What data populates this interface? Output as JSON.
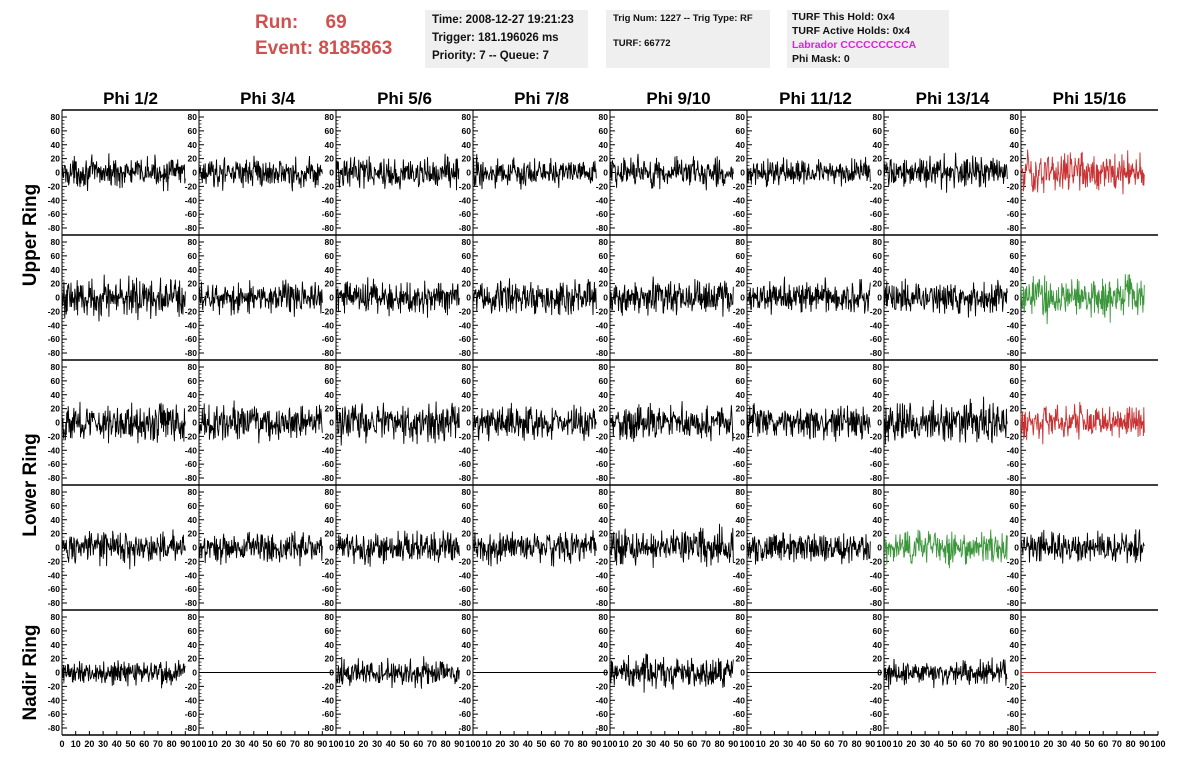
{
  "header": {
    "run_label": "Run:",
    "run_value": "69",
    "event_label": "Event:",
    "event_value": "8185863",
    "time": "Time: 2008-12-27 19:21:23",
    "trigger": "Trigger: 181.196026 ms",
    "priority": "Priority: 7 -- Queue: 7",
    "trig_num": "Trig Num: 1227 -- Trig Type: RF",
    "turf": "TURF: 66772",
    "turf_hold": "TURF This Hold: 0x4",
    "turf_active": "TURF Active Holds: 0x4",
    "labrador": "Labrador CCCCCCCCCA",
    "phi_mask": "Phi Mask: 0"
  },
  "colors": {
    "run_text": "#d05050",
    "labrador_text": "#e020e0",
    "trace_default": "#000000",
    "trace_red": "#c83232",
    "trace_green": "#3c963c",
    "info_bg": "#efefef"
  },
  "chart_data": {
    "type": "line",
    "columns": [
      "Phi 1/2",
      "Phi 3/4",
      "Phi 5/6",
      "Phi 7/8",
      "Phi 9/10",
      "Phi 11/12",
      "Phi 13/14",
      "Phi 15/16"
    ],
    "row_labels": [
      "Upper Ring",
      "Lower Ring",
      "Nadir Ring"
    ],
    "ylim": [
      -80,
      80
    ],
    "yticks": [
      -80,
      -60,
      -40,
      -20,
      0,
      20,
      40,
      60,
      80
    ],
    "xlim": [
      0,
      100
    ],
    "xticks": [
      0,
      10,
      20,
      30,
      40,
      50,
      60,
      70,
      80,
      90,
      100
    ],
    "xticks_first_panel": [
      0,
      10,
      20,
      30,
      40,
      50,
      60,
      70,
      80,
      90,
      100
    ],
    "xticks_other_panels": [
      10,
      20,
      30,
      40,
      50,
      60,
      70,
      80,
      90,
      100
    ],
    "panel_rows": 5,
    "trace_x_max": 90,
    "panels": [
      {
        "row": 0,
        "col": 0,
        "color": "black",
        "amp": 10
      },
      {
        "row": 0,
        "col": 1,
        "color": "black",
        "amp": 10
      },
      {
        "row": 0,
        "col": 2,
        "color": "black",
        "amp": 11
      },
      {
        "row": 0,
        "col": 3,
        "color": "black",
        "amp": 10
      },
      {
        "row": 0,
        "col": 4,
        "color": "black",
        "amp": 11
      },
      {
        "row": 0,
        "col": 5,
        "color": "black",
        "amp": 9
      },
      {
        "row": 0,
        "col": 6,
        "color": "black",
        "amp": 11
      },
      {
        "row": 0,
        "col": 7,
        "color": "red",
        "amp": 14
      },
      {
        "row": 1,
        "col": 0,
        "color": "black",
        "amp": 14
      },
      {
        "row": 1,
        "col": 1,
        "color": "black",
        "amp": 11
      },
      {
        "row": 1,
        "col": 2,
        "color": "black",
        "amp": 12
      },
      {
        "row": 1,
        "col": 3,
        "color": "black",
        "amp": 12
      },
      {
        "row": 1,
        "col": 4,
        "color": "black",
        "amp": 12
      },
      {
        "row": 1,
        "col": 5,
        "color": "black",
        "amp": 11
      },
      {
        "row": 1,
        "col": 6,
        "color": "black",
        "amp": 11
      },
      {
        "row": 1,
        "col": 7,
        "color": "green",
        "amp": 14
      },
      {
        "row": 2,
        "col": 0,
        "color": "black",
        "amp": 13
      },
      {
        "row": 2,
        "col": 1,
        "color": "black",
        "amp": 12
      },
      {
        "row": 2,
        "col": 2,
        "color": "black",
        "amp": 13
      },
      {
        "row": 2,
        "col": 3,
        "color": "black",
        "amp": 11
      },
      {
        "row": 2,
        "col": 4,
        "color": "black",
        "amp": 12
      },
      {
        "row": 2,
        "col": 5,
        "color": "black",
        "amp": 12
      },
      {
        "row": 2,
        "col": 6,
        "color": "black",
        "amp": 14
      },
      {
        "row": 2,
        "col": 7,
        "color": "red",
        "amp": 12
      },
      {
        "row": 3,
        "col": 0,
        "color": "black",
        "amp": 11
      },
      {
        "row": 3,
        "col": 1,
        "color": "black",
        "amp": 11
      },
      {
        "row": 3,
        "col": 2,
        "color": "black",
        "amp": 11
      },
      {
        "row": 3,
        "col": 3,
        "color": "black",
        "amp": 11
      },
      {
        "row": 3,
        "col": 4,
        "color": "black",
        "amp": 12
      },
      {
        "row": 3,
        "col": 5,
        "color": "black",
        "amp": 10
      },
      {
        "row": 3,
        "col": 6,
        "color": "green",
        "amp": 11
      },
      {
        "row": 3,
        "col": 7,
        "color": "black",
        "amp": 10
      },
      {
        "row": 4,
        "col": 0,
        "color": "black",
        "amp": 9
      },
      {
        "row": 4,
        "col": 1,
        "color": "black",
        "flat": true
      },
      {
        "row": 4,
        "col": 2,
        "color": "black",
        "amp": 9
      },
      {
        "row": 4,
        "col": 3,
        "color": "black",
        "flat": true
      },
      {
        "row": 4,
        "col": 4,
        "color": "black",
        "amp": 11
      },
      {
        "row": 4,
        "col": 5,
        "color": "black",
        "flat": true
      },
      {
        "row": 4,
        "col": 6,
        "color": "black",
        "amp": 9
      },
      {
        "row": 4,
        "col": 7,
        "color": "red",
        "flat": true
      }
    ]
  }
}
